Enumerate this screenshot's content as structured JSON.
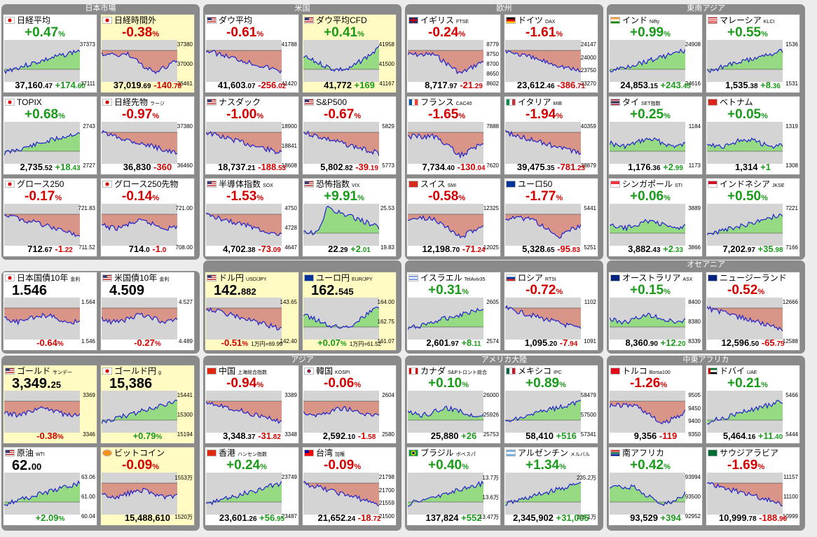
{
  "groups": {
    "japan": "日本市場",
    "us": "米国",
    "europe": "欧州",
    "seasia": "東南アジア",
    "oceania": "オセアニア",
    "asia": "アジア",
    "americas": "アメリカ大陸",
    "meafrica": "中東アフリカ"
  },
  "tiles": [
    {
      "name": "日経平均",
      "sub": "",
      "flag": "jp",
      "pct": "+0.47",
      "val": "37,160",
      "dec": ".47",
      "chg": "+174",
      "chgd": ".60",
      "dir": "pos",
      "axis": [
        "37373",
        "37111"
      ],
      "shape": "up"
    },
    {
      "name": "日経時間外",
      "sub": "",
      "flag": "jp",
      "pct": "-0.38",
      "val": "37,019",
      "dec": ".69",
      "chg": "-140",
      "chgd": ".78",
      "dir": "neg",
      "axis": [
        "37380",
        "37000",
        "36461"
      ],
      "shape": "dip",
      "yellow": true
    },
    {
      "name": "ダウ平均",
      "sub": "",
      "flag": "us",
      "pct": "-0.61",
      "val": "41,603",
      "dec": ".07",
      "chg": "-256",
      "chgd": ".02",
      "dir": "neg",
      "axis": [
        "41788",
        "41420"
      ],
      "shape": "down"
    },
    {
      "name": "ダウ平均CFD",
      "sub": "",
      "flag": "us",
      "pct": "+0.41",
      "val": "41,772",
      "dec": "",
      "chg": "+169",
      "chgd": "",
      "dir": "pos",
      "axis": [
        "41958",
        "41500",
        "41167"
      ],
      "shape": "dipup",
      "yellow": true
    },
    {
      "name": "イギリス",
      "sub": "FTSE",
      "flag": "uk",
      "pct": "-0.24",
      "val": "8,717",
      "dec": ".97",
      "chg": "-21",
      "chgd": ".29",
      "dir": "neg",
      "axis": [
        "8779",
        "8750",
        "8700",
        "8650",
        "8602"
      ],
      "shape": "dip"
    },
    {
      "name": "ドイツ",
      "sub": "DAX",
      "flag": "de",
      "pct": "-1.61",
      "val": "23,612",
      "dec": ".46",
      "chg": "-386",
      "chgd": ".71",
      "dir": "neg",
      "axis": [
        "24147",
        "24000",
        "23750",
        "23270"
      ],
      "shape": "down"
    },
    {
      "name": "インド",
      "sub": "Nifty",
      "flag": "in",
      "pct": "+0.99",
      "val": "24,853",
      "dec": ".15",
      "chg": "+243",
      "chgd": ".45",
      "dir": "pos",
      "axis": [
        "24908",
        "24616"
      ],
      "shape": "up"
    },
    {
      "name": "マレーシア",
      "sub": "KLCI",
      "flag": "my",
      "pct": "+0.55",
      "val": "1,535",
      "dec": ".38",
      "chg": "+8",
      "chgd": ".36",
      "dir": "pos",
      "axis": [
        "1536",
        "1531"
      ],
      "shape": "up"
    },
    {
      "name": "TOPIX",
      "sub": "",
      "flag": "jp",
      "pct": "+0.68",
      "val": "2,735",
      "dec": ".52",
      "chg": "+18",
      "chgd": ".43",
      "dir": "pos",
      "axis": [
        "2743",
        "2727"
      ],
      "shape": "up"
    },
    {
      "name": "日経先物",
      "sub": "ラージ",
      "flag": "jp",
      "pct": "-0.97",
      "val": "36,830",
      "dec": "",
      "chg": "-360",
      "chgd": "",
      "dir": "neg",
      "axis": [
        "37380",
        "36460"
      ],
      "shape": "down"
    },
    {
      "name": "ナスダック",
      "sub": "",
      "flag": "us",
      "pct": "-1.00",
      "val": "18,737",
      "dec": ".21",
      "chg": "-188",
      "chgd": ".53",
      "dir": "neg",
      "axis": [
        "18900",
        "18841",
        "18608"
      ],
      "shape": "down"
    },
    {
      "name": "S&P500",
      "sub": "",
      "flag": "us",
      "pct": "-0.67",
      "val": "5,802",
      "dec": ".82",
      "chg": "-39",
      "chgd": ".19",
      "dir": "neg",
      "axis": [
        "5829",
        "5773"
      ],
      "shape": "down"
    },
    {
      "name": "フランス",
      "sub": "CAC40",
      "flag": "fr",
      "pct": "-1.65",
      "val": "7,734",
      "dec": ".40",
      "chg": "-130",
      "chgd": ".04",
      "dir": "neg",
      "axis": [
        "7888",
        "7620"
      ],
      "shape": "dip"
    },
    {
      "name": "イタリア",
      "sub": "MIB",
      "flag": "it",
      "pct": "-1.94",
      "val": "39,475",
      "dec": ".35",
      "chg": "-781",
      "chgd": ".23",
      "dir": "neg",
      "axis": [
        "40359",
        "38879"
      ],
      "shape": "down"
    },
    {
      "name": "タイ",
      "sub": "SET指数",
      "flag": "th",
      "pct": "+0.25",
      "val": "1,176",
      "dec": ".36",
      "chg": "+2",
      "chgd": ".99",
      "dir": "pos",
      "axis": [
        "1184",
        "1173"
      ],
      "shape": "flat"
    },
    {
      "name": "ベトナム",
      "sub": "",
      "flag": "vn",
      "pct": "+0.05",
      "val": "1,314",
      "dec": "",
      "chg": "+1",
      "chgd": "",
      "dir": "pos",
      "axis": [
        "1319",
        "1308"
      ],
      "shape": "flat"
    },
    {
      "name": "グロース250",
      "sub": "",
      "flag": "jp",
      "pct": "-0.17",
      "val": "712",
      "dec": ".67",
      "chg": "-1",
      "chgd": ".22",
      "dir": "neg",
      "axis": [
        "721.83",
        "711.52"
      ],
      "shape": "down"
    },
    {
      "name": "グロース250先物",
      "sub": "",
      "flag": "jp",
      "pct": "-0.14",
      "val": "714",
      "dec": ".0",
      "chg": "-1",
      "chgd": ".0",
      "dir": "neg",
      "axis": [
        "721.00",
        "708.00"
      ],
      "shape": "flat"
    },
    {
      "name": "半導体指数",
      "sub": "SOX",
      "flag": "us",
      "pct": "-1.53",
      "val": "4,702",
      "dec": ".38",
      "chg": "-73",
      "chgd": ".09",
      "dir": "neg",
      "axis": [
        "4750",
        "4728",
        "4647"
      ],
      "shape": "down"
    },
    {
      "name": "恐怖指数",
      "sub": "VIX",
      "flag": "us",
      "pct": "+9.91",
      "val": "22",
      "dec": ".29",
      "chg": "+2",
      "chgd": ".01",
      "dir": "pos",
      "axis": [
        "25.53",
        "19.83"
      ],
      "shape": "spike"
    },
    {
      "name": "スイス",
      "sub": "SMI",
      "flag": "ch",
      "pct": "-0.58",
      "val": "12,198",
      "dec": ".70",
      "chg": "-71",
      "chgd": ".24",
      "dir": "neg",
      "axis": [
        "12325",
        "12025"
      ],
      "shape": "dip"
    },
    {
      "name": "ユーロ50",
      "sub": "",
      "flag": "eu",
      "pct": "-1.77",
      "val": "5,328",
      "dec": ".65",
      "chg": "-95",
      "chgd": ".83",
      "dir": "neg",
      "axis": [
        "5441",
        "5251"
      ],
      "shape": "dip"
    },
    {
      "name": "シンガポール",
      "sub": "STI",
      "flag": "sg",
      "pct": "+0.06",
      "val": "3,882",
      "dec": ".43",
      "chg": "+2",
      "chgd": ".33",
      "dir": "pos",
      "axis": [
        "3889",
        "3866"
      ],
      "shape": "flat"
    },
    {
      "name": "インドネシア",
      "sub": "JKSE",
      "flag": "id",
      "pct": "+0.50",
      "val": "7,202",
      "dec": ".97",
      "chg": "+35",
      "chgd": ".98",
      "dir": "pos",
      "axis": [
        "7221",
        "7166"
      ],
      "shape": "up"
    },
    {
      "name": "日本国債10年",
      "sub": "金利",
      "flag": "jp",
      "big": "1.546",
      "bigd": "",
      "pctonly": "-0.64",
      "dir": "neg",
      "axis": [
        "1.564",
        "1.546"
      ],
      "shape": "flat",
      "bond": true
    },
    {
      "name": "米国債10年",
      "sub": "金利",
      "flag": "us",
      "big": "4.509",
      "bigd": "",
      "pctonly": "-0.27",
      "dir": "neg",
      "axis": [
        "4.527",
        "4.489"
      ],
      "shape": "flat",
      "bond": true
    },
    {
      "name": "ドル円",
      "sub": "USD/JPY",
      "flag": "us",
      "big": "142.",
      "bigd": "882",
      "pctonly": "-0.51",
      "note": "1万円=69.99",
      "dir": "neg",
      "axis": [
        "143.65",
        "142.40"
      ],
      "shape": "down",
      "yellow": true
    },
    {
      "name": "ユーロ円",
      "sub": "EUR/JPY",
      "flag": "eu",
      "big": "162.",
      "bigd": "545",
      "pctonly": "+0.07",
      "note": "1万円=61.52",
      "dir": "pos",
      "axis": [
        "164.00",
        "162.75",
        "161.07"
      ],
      "shape": "dipup",
      "yellow": true
    },
    {
      "name": "イスラエル",
      "sub": "TelAviv35",
      "flag": "il",
      "pct": "+0.31",
      "val": "2,601",
      "dec": ".97",
      "chg": "+8",
      "chgd": ".11",
      "dir": "pos",
      "axis": [
        "2605",
        "2574"
      ],
      "shape": "up"
    },
    {
      "name": "ロシア",
      "sub": "RTSI",
      "flag": "ru",
      "pct": "-0.72",
      "val": "1,095",
      "dec": ".20",
      "chg": "-7",
      "chgd": ".94",
      "dir": "neg",
      "axis": [
        "1102",
        "1091"
      ],
      "shape": "down"
    },
    {
      "name": "オーストラリア",
      "sub": "ASX",
      "flag": "au",
      "pct": "+0.15",
      "val": "8,360",
      "dec": ".90",
      "chg": "+12",
      "chgd": ".20",
      "dir": "pos",
      "axis": [
        "8400",
        "8380",
        "8339"
      ],
      "shape": "flat"
    },
    {
      "name": "ニュージーランド",
      "sub": "",
      "flag": "nz",
      "pct": "-0.52",
      "val": "12,596",
      "dec": ".50",
      "chg": "-65",
      "chgd": ".75",
      "dir": "neg",
      "axis": [
        "12666",
        "12588"
      ],
      "shape": "down"
    },
    {
      "name": "ゴールド",
      "sub": "サンデー",
      "flag": "us",
      "big": "3,349.",
      "bigd": "25",
      "pctonly": "-0.38",
      "dir": "neg",
      "axis": [
        "3369",
        "3346"
      ],
      "shape": "flat",
      "yellow": true
    },
    {
      "name": "ゴールド円",
      "sub": "g",
      "flag": "jp",
      "big": "15,386",
      "bigd": "",
      "pctonly": "+0.79",
      "dir": "pos",
      "axis": [
        "15441",
        "15300",
        "15194"
      ],
      "shape": "up",
      "yellow": true
    },
    {
      "name": "中国",
      "sub": "上海総合指数",
      "flag": "cn",
      "pct": "-0.94",
      "val": "3,348",
      "dec": ".37",
      "chg": "-31",
      "chgd": ".82",
      "dir": "neg",
      "axis": [
        "3389",
        "3348"
      ],
      "shape": "down"
    },
    {
      "name": "韓国",
      "sub": "KOSPI",
      "flag": "kr",
      "pct": "-0.06",
      "val": "2,592",
      "dec": ".10",
      "chg": "-1",
      "chgd": ".58",
      "dir": "neg",
      "axis": [
        "2604",
        "2580"
      ],
      "shape": "flat"
    },
    {
      "name": "カナダ",
      "sub": "S&Pトロント総合",
      "flag": "ca",
      "pct": "+0.10",
      "val": "25,880",
      "dec": "",
      "chg": "+26",
      "chgd": "",
      "dir": "pos",
      "axis": [
        "26000",
        "25926",
        "25753"
      ],
      "shape": "flat"
    },
    {
      "name": "メキシコ",
      "sub": "IPC",
      "flag": "mx",
      "pct": "+0.89",
      "val": "58,410",
      "dec": "",
      "chg": "+516",
      "chgd": "",
      "dir": "pos",
      "axis": [
        "58479",
        "57500",
        "57341"
      ],
      "shape": "up"
    },
    {
      "name": "トルコ",
      "sub": "Borsa100",
      "flag": "tr",
      "pct": "-1.26",
      "val": "9,356",
      "dec": "",
      "chg": "-119",
      "chgd": "",
      "dir": "neg",
      "axis": [
        "9505",
        "9450",
        "9400",
        "9350"
      ],
      "shape": "dip"
    },
    {
      "name": "ドバイ",
      "sub": "UAE",
      "flag": "ae",
      "pct": "+0.21",
      "val": "5,464",
      "dec": ".16",
      "chg": "+11",
      "chgd": ".40",
      "dir": "pos",
      "axis": [
        "5466",
        "5444"
      ],
      "shape": "up"
    },
    {
      "name": "原油",
      "sub": "WTI",
      "flag": "us",
      "big": "62.",
      "bigd": "00",
      "pctonly": "+2.09",
      "dir": "pos",
      "axis": [
        "63.06",
        "61.00",
        "60.04"
      ],
      "shape": "up"
    },
    {
      "name": "ビットコイン",
      "sub": "",
      "flag": "btc",
      "big": "",
      "bigd": "",
      "pct": "-0.09",
      "val": "15,488,610",
      "dec": "",
      "chg": "",
      "chgd": "",
      "dir": "neg",
      "axis": [
        "1553万",
        "1520万"
      ],
      "shape": "flat",
      "yellow": true
    },
    {
      "name": "香港",
      "sub": "ハンセン指数",
      "flag": "hk",
      "pct": "+0.24",
      "val": "23,601",
      "dec": ".26",
      "chg": "+56",
      "chgd": ".95",
      "dir": "pos",
      "axis": [
        "23749",
        "23487"
      ],
      "shape": "up"
    },
    {
      "name": "台湾",
      "sub": "加権",
      "flag": "tw",
      "pct": "-0.09",
      "val": "21,652",
      "dec": ".24",
      "chg": "-18",
      "chgd": ".72",
      "dir": "neg",
      "axis": [
        "21798",
        "21700",
        "21559",
        "21500"
      ],
      "shape": "down"
    },
    {
      "name": "ブラジル",
      "sub": "ボベスパ",
      "flag": "br",
      "pct": "+0.40",
      "val": "137,824",
      "dec": "",
      "chg": "+552",
      "chgd": "",
      "dir": "pos",
      "axis": [
        "13.7万",
        "13.6万",
        "13.47万"
      ],
      "shape": "up"
    },
    {
      "name": "アルゼンチン",
      "sub": "メルバル",
      "flag": "ar",
      "pct": "+1.34",
      "val": "2,345,902",
      "dec": "",
      "chg": "+31,005",
      "chgd": "",
      "dir": "pos",
      "axis": [
        "235.2万",
        "228.1万"
      ],
      "shape": "up"
    },
    {
      "name": "南アフリカ",
      "sub": "",
      "flag": "za",
      "pct": "+0.42",
      "val": "93,529",
      "dec": "",
      "chg": "+394",
      "chgd": "",
      "dir": "pos",
      "axis": [
        "93994",
        "93500",
        "92952"
      ],
      "shape": "dip"
    },
    {
      "name": "サウジアラビア",
      "sub": "",
      "flag": "sa",
      "pct": "-1.69",
      "val": "10,999",
      "dec": ".78",
      "chg": "-188",
      "chgd": ".96",
      "dir": "neg",
      "axis": [
        "11157",
        "11100",
        "10999"
      ],
      "shape": "down"
    }
  ],
  "colors": {
    "pos": "#1a9a1a",
    "neg": "#d40000",
    "fill_pos": "#8fdc7a",
    "fill_neg": "#d98e7e",
    "line": "#2222cc"
  }
}
